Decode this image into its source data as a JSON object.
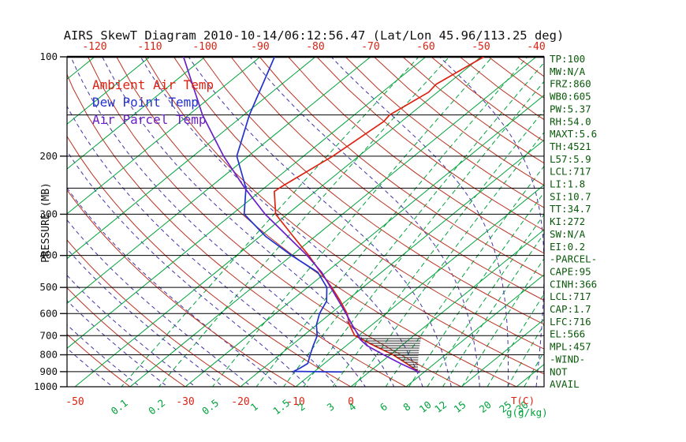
{
  "title": "AIRS SkewT Diagram 2010-10-14/06:12:56.47 (Lat/Lon 45.96/113.25 deg)",
  "legend": {
    "ambient": "Ambient Air Temp",
    "dew": "Dew Point Temp",
    "parcel": "Air Parcel Temp"
  },
  "axes": {
    "pressure_label": "PRESSURE (MB)",
    "pressure_ticks": [
      100,
      200,
      300,
      400,
      500,
      600,
      700,
      800,
      900,
      1000
    ],
    "pressure_lines": [
      100,
      150,
      200,
      250,
      300,
      400,
      500,
      600,
      700,
      800,
      900,
      1000
    ],
    "top_temp_ticks": [
      -120,
      -110,
      -100,
      -90,
      -80,
      -70,
      -60,
      -50,
      -40
    ],
    "bottom_temp_ticks": [
      -50,
      -30,
      -20,
      -10,
      0
    ],
    "temp_unit_label": "T(C)",
    "mixratio_values": [
      0.1,
      0.2,
      0.5,
      1,
      1.5,
      2,
      3,
      4,
      6,
      8,
      10,
      12,
      15,
      20,
      25,
      30
    ],
    "mixratio_unit_label": "g(g/kg)"
  },
  "stats_panel": [
    "TP:100",
    "MW:N/A",
    "FRZ:860",
    "WB0:605",
    "PW:5.37",
    "RH:54.0",
    "MAXT:5.6",
    "TH:4521",
    "L57:5.9",
    "LCL:717",
    "LI:1.8",
    "SI:10.7",
    "TT:34.7",
    "KI:272",
    "SW:N/A",
    "EI:0.2",
    "-PARCEL-",
    "CAPE:95",
    "CINH:366",
    "LCL:717",
    "CAP:1.7",
    "LFC:716",
    "EL:566",
    "MPL:457",
    "-WIND-",
    "NOT",
    "AVAIL"
  ],
  "colors": {
    "background": "#ffffff",
    "isotherm": "#00a33c",
    "dry_adiabat": "#bb3322",
    "moist_adiabat": "#4433aa",
    "mixing_ratio": "#00a33c",
    "pressure_line": "#000000",
    "ambient": "#dd2211",
    "dewpoint": "#2233cc",
    "parcel": "#6a1fc8",
    "label_red": "#dd2211",
    "label_green": "#00a33c",
    "stats_text": "#0a5a0a",
    "axis_text": "#101010",
    "hatch": "#222222"
  },
  "chart_data": {
    "type": "line",
    "title": "AIRS SkewT Diagram 2010-10-14/06:12:56.47 (Lat/Lon 45.96/113.25 deg)",
    "xlabel": "Temperature (C), skewed",
    "ylabel": "Pressure (MB), log scale",
    "ylim": [
      100,
      1000
    ],
    "xlim_bottom_c": [
      -50,
      35
    ],
    "grid": {
      "isotherms_c": {
        "min": -130,
        "max": 40,
        "step": 10
      },
      "dry_adiabats_theta_c": {
        "min": -40,
        "max": 180,
        "step": 10
      },
      "moist_adiabats_t0_c": {
        "min": -40,
        "max": 40,
        "step": 5
      }
    },
    "series": [
      {
        "name": "Ambient Air Temp",
        "points": [
          [
            905,
            9.3
          ],
          [
            850,
            4.9
          ],
          [
            800,
            0.5
          ],
          [
            750,
            -5.0
          ],
          [
            700,
            -10.7
          ],
          [
            650,
            -14.0
          ],
          [
            600,
            -17.0
          ],
          [
            550,
            -21.0
          ],
          [
            500,
            -25.6
          ],
          [
            450,
            -31.0
          ],
          [
            400,
            -36.9
          ],
          [
            350,
            -44.0
          ],
          [
            300,
            -52.1
          ],
          [
            256,
            -57.4
          ],
          [
            248,
            -57.2
          ],
          [
            200,
            -54.7
          ],
          [
            157,
            -53.2
          ],
          [
            150,
            -53.6
          ],
          [
            128,
            -51.6
          ],
          [
            121,
            -52.0
          ],
          [
            100,
            -49.5
          ]
        ]
      },
      {
        "name": "Dew Point Temp",
        "points": [
          [
            902,
            -4.9
          ],
          [
            898,
            -13.8
          ],
          [
            880,
            -13.4
          ],
          [
            850,
            -13.0
          ],
          [
            800,
            -14.5
          ],
          [
            750,
            -16.0
          ],
          [
            700,
            -17.5
          ],
          [
            650,
            -20.0
          ],
          [
            600,
            -22.0
          ],
          [
            550,
            -23.5
          ],
          [
            500,
            -26.5
          ],
          [
            450,
            -31.5
          ],
          [
            400,
            -40.0
          ],
          [
            350,
            -49.0
          ],
          [
            300,
            -57.8
          ],
          [
            250,
            -63.3
          ],
          [
            200,
            -72.1
          ],
          [
            150,
            -79.0
          ],
          [
            100,
            -87.4
          ]
        ]
      },
      {
        "name": "Air Parcel Temp",
        "points": [
          [
            905,
            9.3
          ],
          [
            850,
            3.8
          ],
          [
            800,
            -1.2
          ],
          [
            750,
            -6.3
          ],
          [
            717,
            -9.0
          ],
          [
            700,
            -10.0
          ],
          [
            650,
            -13.5
          ],
          [
            600,
            -17.2
          ],
          [
            550,
            -21.3
          ],
          [
            500,
            -25.8
          ],
          [
            450,
            -30.8
          ],
          [
            400,
            -37.2
          ],
          [
            350,
            -45.0
          ],
          [
            300,
            -54.0
          ],
          [
            250,
            -63.5
          ],
          [
            200,
            -74.5
          ],
          [
            150,
            -87.5
          ],
          [
            100,
            -103.9
          ]
        ]
      }
    ],
    "hatch_region": {
      "pressure_range": [
        710,
        905
      ],
      "right_boundary": [
        [
          905,
          9.0
        ],
        [
          710,
          1.8
        ]
      ]
    }
  }
}
